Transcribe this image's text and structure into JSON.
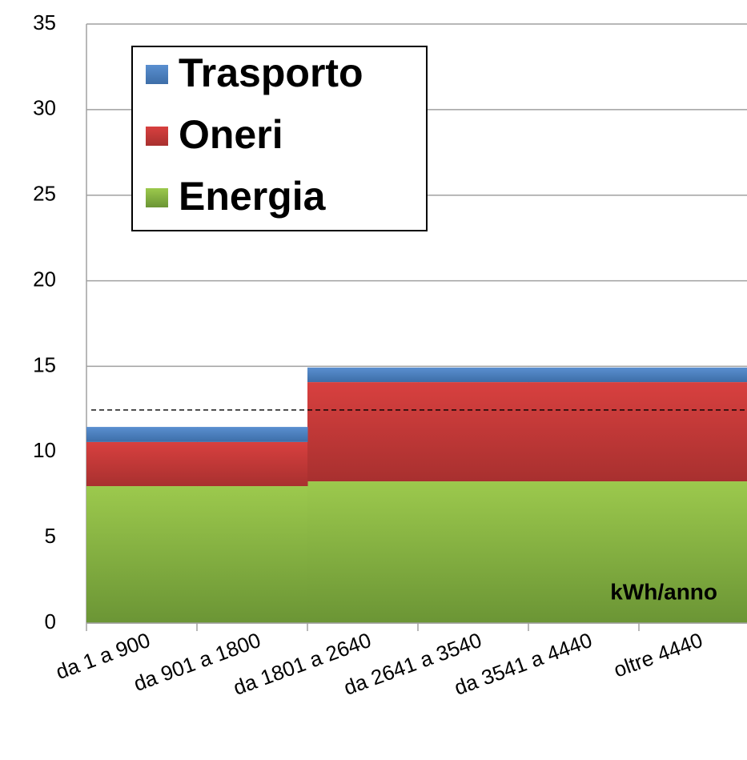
{
  "chart_data": {
    "type": "stacked_step_area",
    "categories": [
      "da 1 a 900",
      "da 901 a 1800",
      "da 1801 a 2640",
      "da 2641 a 3540",
      "da 3541 a 4440",
      "oltre 4440"
    ],
    "series": [
      {
        "name": "Energia",
        "color": "#8db443",
        "values": [
          8.0,
          8.0,
          8.28,
          8.28,
          8.28,
          8.28
        ]
      },
      {
        "name": "Oneri",
        "color": "#c0393a",
        "values": [
          2.58,
          2.58,
          5.8,
          5.8,
          5.8,
          5.8
        ]
      },
      {
        "name": "Trasporto",
        "color": "#4a7ebb",
        "values": [
          0.88,
          0.88,
          0.85,
          0.85,
          0.85,
          0.85
        ]
      }
    ],
    "reference_line": 12.45,
    "annotation": "kWh/anno",
    "ylim": [
      0,
      35
    ],
    "yticks": [
      0,
      5,
      10,
      15,
      20,
      25,
      30,
      35
    ],
    "grid": true
  }
}
